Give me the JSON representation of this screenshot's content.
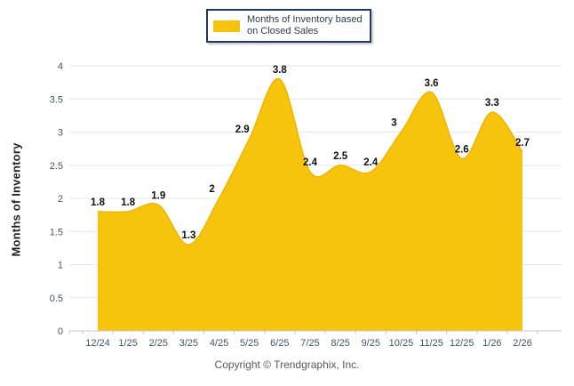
{
  "legend": {
    "line1": "Months of Inventory based",
    "line2": "on Closed Sales",
    "swatch_color": "#F6C40D"
  },
  "y_axis_title": "Months of Inventory",
  "footer": {
    "copyright": "Copyright © Trendgraphix, Inc."
  },
  "chart_data": {
    "type": "area",
    "title": "",
    "categories": [
      "12/24",
      "1/25",
      "2/25",
      "3/25",
      "4/25",
      "5/25",
      "6/25",
      "7/25",
      "8/25",
      "9/25",
      "10/25",
      "11/25",
      "12/25",
      "1/26",
      "2/26"
    ],
    "series": [
      {
        "name": "Months of Inventory based on Closed Sales",
        "values": [
          1.8,
          1.8,
          1.9,
          1.3,
          2,
          2.9,
          3.8,
          2.4,
          2.5,
          2.4,
          3,
          3.6,
          2.6,
          3.3,
          2.7
        ]
      }
    ],
    "data_labels": [
      "1.8",
      "1.8",
      "1.9",
      "1.3",
      "2",
      "2.9",
      "3.8",
      "2.4",
      "2.5",
      "2.4",
      "3",
      "3.6",
      "2.6",
      "3.3",
      "2.7"
    ],
    "xlabel": "",
    "ylabel": "Months of Inventory",
    "ylim": [
      0,
      4
    ],
    "ytick_step": 0.5,
    "grid": true,
    "smooth": true,
    "legend_position": "top-center",
    "colors": {
      "fill": "#F6C40D",
      "stroke": "#F1B400",
      "grid": "#E7E7E7",
      "axis": "#C8C8C8",
      "tick_label": "#44546A",
      "data_label": "#111111",
      "legend_border": "#1F3864"
    }
  }
}
